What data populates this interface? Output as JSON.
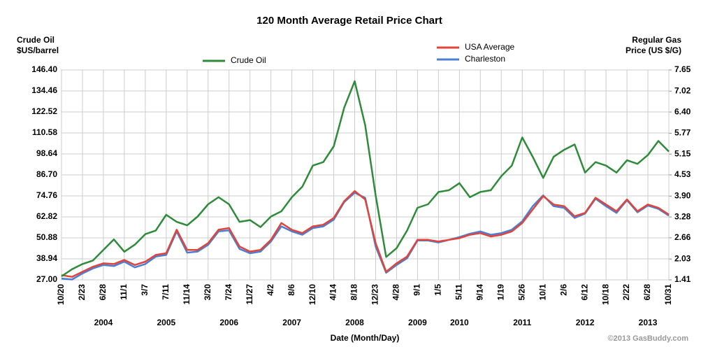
{
  "chart_data": {
    "type": "line",
    "title": "120 Month Average Retail Price Chart",
    "y_label": [
      "Crude Oil",
      "$US/barrel"
    ],
    "y2_label": [
      "Regular Gas",
      "Price (US $/G)"
    ],
    "x_label": "Date (Month/Day)",
    "annotation": "©2013 GasBuddy.com",
    "categories": [
      "10/20",
      null,
      "2/23",
      null,
      "6/28",
      null,
      "11/1",
      null,
      "3/7",
      null,
      "7/11",
      null,
      "11/14",
      null,
      "3/20",
      null,
      "7/24",
      null,
      "11/27",
      null,
      "4/2",
      null,
      "8/6",
      null,
      "12/10",
      null,
      "4/14",
      null,
      "8/18",
      null,
      "12/23",
      null,
      "4/28",
      null,
      "9/1",
      null,
      "1/5",
      null,
      "5/11",
      null,
      "9/14",
      null,
      "1/19",
      null,
      "5/26",
      null,
      "10/1",
      null,
      "2/6",
      null,
      "6/12",
      null,
      "10/18",
      null,
      "2/22",
      null,
      "6/28",
      null,
      "10/31"
    ],
    "year_labels": [
      null,
      null,
      null,
      null,
      "2004",
      null,
      null,
      null,
      null,
      null,
      "2005",
      null,
      null,
      null,
      null,
      null,
      "2006",
      null,
      null,
      null,
      null,
      null,
      "2007",
      null,
      null,
      null,
      null,
      null,
      "2008",
      null,
      null,
      null,
      null,
      null,
      "2009",
      null,
      null,
      null,
      "2010",
      null,
      null,
      null,
      null,
      null,
      "2011",
      null,
      null,
      null,
      null,
      null,
      "2012",
      null,
      null,
      null,
      null,
      null,
      "2013",
      null,
      null
    ],
    "series": [
      {
        "name": "Crude Oil",
        "color": "#2e8b3a",
        "axis": "y",
        "values": [
          29,
          33,
          36,
          38,
          44,
          50,
          43,
          47,
          53,
          55,
          64,
          60,
          58,
          63,
          70,
          74,
          70,
          60,
          61,
          57,
          63,
          66,
          74,
          80,
          92,
          94,
          103,
          125,
          140,
          115,
          75,
          40,
          45,
          55,
          68,
          70,
          77,
          78,
          82,
          74,
          77,
          78,
          86,
          92,
          108,
          97,
          85,
          97,
          101,
          104,
          88,
          94,
          92,
          88,
          95,
          93,
          98,
          106,
          100
        ]
      },
      {
        "name": "USA Average",
        "color": "#e0443a",
        "axis": "y2",
        "values": [
          1.55,
          1.5,
          1.65,
          1.8,
          1.9,
          1.88,
          2.0,
          1.85,
          1.95,
          2.15,
          2.2,
          2.9,
          2.3,
          2.3,
          2.5,
          2.9,
          2.95,
          2.4,
          2.25,
          2.3,
          2.6,
          3.1,
          2.9,
          2.8,
          3.0,
          3.05,
          3.25,
          3.75,
          4.05,
          3.8,
          2.5,
          1.65,
          1.9,
          2.1,
          2.6,
          2.6,
          2.55,
          2.6,
          2.65,
          2.75,
          2.8,
          2.7,
          2.75,
          2.85,
          3.1,
          3.5,
          3.9,
          3.65,
          3.6,
          3.3,
          3.4,
          3.85,
          3.65,
          3.45,
          3.8,
          3.45,
          3.65,
          3.55,
          3.35
        ]
      },
      {
        "name": "Charleston",
        "color": "#4a7fd4",
        "axis": "y2",
        "values": [
          1.45,
          1.42,
          1.6,
          1.75,
          1.85,
          1.82,
          1.95,
          1.78,
          1.88,
          2.1,
          2.15,
          2.85,
          2.22,
          2.25,
          2.45,
          2.85,
          2.88,
          2.33,
          2.2,
          2.25,
          2.55,
          3.0,
          2.85,
          2.75,
          2.95,
          3.0,
          3.2,
          3.72,
          4.0,
          3.85,
          2.4,
          1.62,
          1.85,
          2.05,
          2.58,
          2.58,
          2.52,
          2.6,
          2.68,
          2.78,
          2.85,
          2.75,
          2.8,
          2.9,
          3.15,
          3.6,
          3.92,
          3.6,
          3.55,
          3.25,
          3.38,
          3.82,
          3.6,
          3.4,
          3.78,
          3.42,
          3.62,
          3.52,
          3.32
        ]
      }
    ],
    "ylim": [
      27,
      146.4
    ],
    "yticks": [
      {
        "value": 27,
        "label": "27.00"
      },
      38.94,
      50.88,
      62.82,
      74.76,
      {
        "value": 86.7,
        "label": "86.70"
      },
      98.64,
      110.58,
      122.52,
      134.46,
      {
        "value": 146.4,
        "label": "146.40"
      }
    ],
    "y2lim": [
      1.41,
      7.65
    ],
    "y2ticks": [
      1.41,
      2.03,
      2.66,
      3.28,
      {
        "value": 3.9,
        "label": "3.90"
      },
      4.53,
      5.15,
      5.77,
      {
        "value": 6.4,
        "label": "6.40"
      },
      7.02,
      7.65
    ],
    "grid": true
  }
}
